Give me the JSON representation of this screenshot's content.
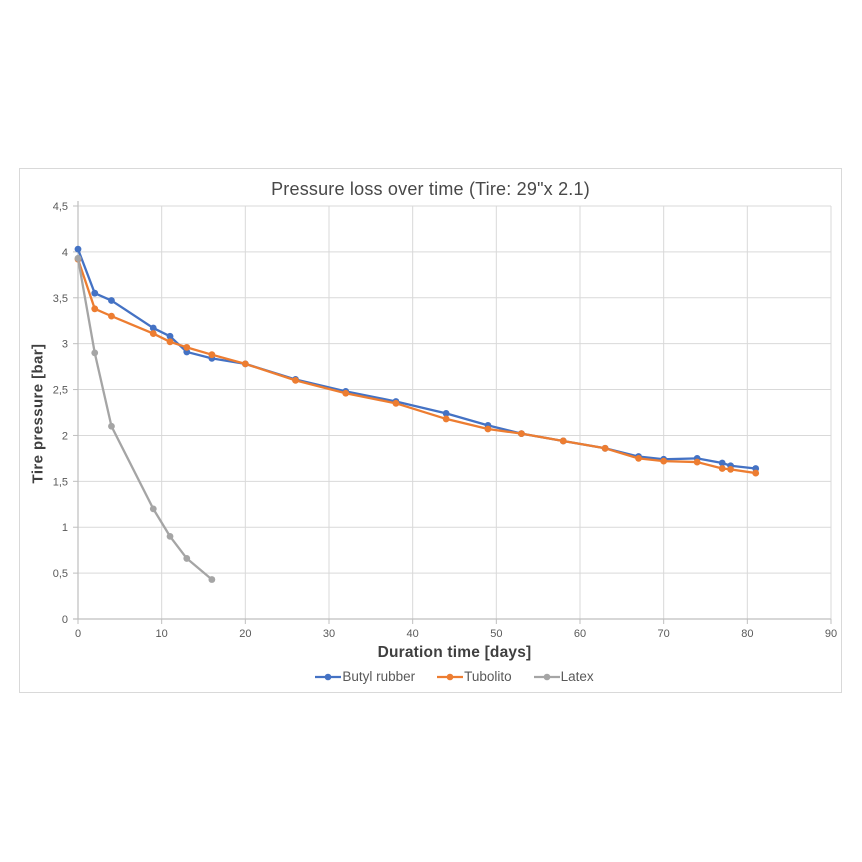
{
  "chart_data": {
    "type": "line",
    "title": "Pressure loss over time (Tire: 29\"x 2.1)",
    "xlabel": "Duration time [days]",
    "ylabel": "Tire pressure [bar]",
    "xlim": [
      0,
      90
    ],
    "ylim": [
      0,
      4.5
    ],
    "x_ticks": [
      0,
      10,
      20,
      30,
      40,
      50,
      60,
      70,
      80,
      90
    ],
    "x_tick_labels": [
      "0",
      "10",
      "20",
      "30",
      "40",
      "50",
      "60",
      "70",
      "80",
      "90"
    ],
    "y_ticks": [
      0,
      0.5,
      1,
      1.5,
      2,
      2.5,
      3,
      3.5,
      4,
      4.5
    ],
    "y_tick_labels": [
      "0",
      "0,5",
      "1",
      "1,5",
      "2",
      "2,5",
      "3",
      "3,5",
      "4",
      "4,5"
    ],
    "grid": true,
    "legend_position": "bottom",
    "series": [
      {
        "name": "Butyl rubber",
        "color": "#4472C4",
        "x": [
          0,
          2,
          4,
          9,
          11,
          13,
          16,
          20,
          26,
          32,
          38,
          44,
          49,
          53,
          58,
          63,
          67,
          70,
          74,
          77,
          78,
          81
        ],
        "y": [
          4.03,
          3.55,
          3.47,
          3.17,
          3.08,
          2.91,
          2.84,
          2.78,
          2.61,
          2.48,
          2.37,
          2.24,
          2.11,
          2.02,
          1.94,
          1.86,
          1.77,
          1.74,
          1.75,
          1.7,
          1.67,
          1.64
        ]
      },
      {
        "name": "Tubolito",
        "color": "#ED7D31",
        "x": [
          0,
          2,
          4,
          9,
          11,
          13,
          16,
          20,
          26,
          32,
          38,
          44,
          49,
          53,
          58,
          63,
          67,
          70,
          74,
          77,
          78,
          81
        ],
        "y": [
          3.92,
          3.38,
          3.3,
          3.11,
          3.02,
          2.96,
          2.88,
          2.78,
          2.6,
          2.46,
          2.35,
          2.18,
          2.07,
          2.02,
          1.94,
          1.86,
          1.75,
          1.72,
          1.71,
          1.64,
          1.63,
          1.59
        ]
      },
      {
        "name": "Latex",
        "color": "#A5A5A5",
        "x": [
          0,
          2,
          4,
          9,
          11,
          13,
          16
        ],
        "y": [
          3.93,
          2.9,
          2.1,
          1.2,
          0.9,
          0.66,
          0.43
        ]
      }
    ]
  },
  "colors": {
    "gridline": "#d9d9d9",
    "axis_line": "#bfbfbf",
    "tick_text": "#595959",
    "title_text": "#484848",
    "axis_title_text": "#3f3f3f",
    "legend_text": "#595959",
    "chart_border": "#d9d9d9",
    "background": "#ffffff"
  }
}
